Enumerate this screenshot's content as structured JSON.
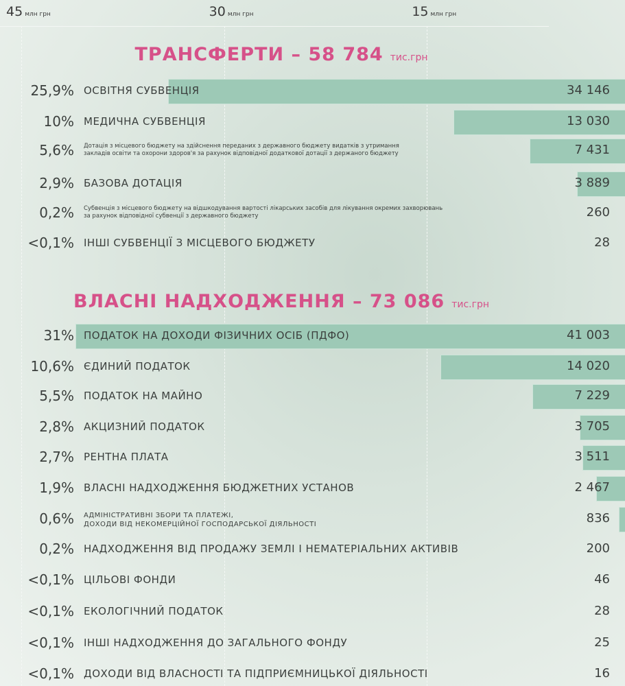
{
  "chart_data": {
    "type": "bar",
    "orientation": "horizontal",
    "xlim": [
      0,
      45
    ],
    "xticks": [
      45,
      30,
      15
    ],
    "x_unit": "млн грн",
    "color": "#9dc9b6",
    "sections": [
      {
        "title": "ТРАНСФЕРТИ – 58 784",
        "title_unit": "тис.грн",
        "categories": [
          "ОСВІТНЯ СУБВЕНЦІЯ",
          "МЕДИЧНА СУБВЕНЦІЯ",
          "Дотація з місцевого бюджету на здійснення переданих з державного бюджету видатків з утримання\nзакладів освіти та охорони здоров'я за рахунок відповідної додаткової дотації з держаного бюджету",
          "БАЗОВА ДОТАЦІЯ",
          "Субвенція з місцевого бюджету на відшкодування вартості лікарських засобів для лікування окремих захворювань\nза рахунок відповідної субвенції з державного бюджету",
          "ІНШІ СУБВЕНЦІЇ З МІСЦЕВОГО БЮДЖЕТУ"
        ],
        "shares": [
          "25,9%",
          "10%",
          "5,6%",
          "2,9%",
          "0,2%",
          "<0,1%"
        ],
        "values": [
          34.146,
          13.03,
          7.431,
          3.889,
          0.26,
          0.028
        ],
        "value_labels": [
          "34 146",
          "13 030",
          "7 431",
          "3 889",
          "260",
          "28"
        ]
      },
      {
        "title": "ВЛАСНІ НАДХОДЖЕННЯ – 73 086",
        "title_unit": "тис.грн",
        "categories": [
          "ПОДАТОК НА ДОХОДИ ФІЗИЧНИХ ОСІБ (ПДФО)",
          "ЄДИНИЙ ПОДАТОК",
          "ПОДАТОК НА МАЙНО",
          "АКЦИЗНИЙ ПОДАТОК",
          "РЕНТНА ПЛАТА",
          "ВЛАСНІ НАДХОДЖЕННЯ БЮДЖЕТНИХ УСТАНОВ",
          "АДМІНІСТРАТИВНІ ЗБОРИ ТА ПЛАТЕЖІ,\nДОХОДИ ВІД НЕКОМЕРЦІЙНОЇ ГОСПОДАРСЬКОЇ ДІЯЛЬНОСТІ",
          "НАДХОДЖЕННЯ ВІД ПРОДАЖУ ЗЕМЛІ І НЕМАТЕРІАЛЬНИХ АКТИВІВ",
          "ЦІЛЬОВІ ФОНДИ",
          "ЕКОЛОГІЧНИЙ ПОДАТОК",
          "ІНШІ  НАДХОДЖЕННЯ ДО ЗАГАЛЬНОГО ФОНДУ",
          "ДОХОДИ ВІД ВЛАСНОСТІ ТА ПІДПРИЄМНИЦЬКОЇ ДІЯЛЬНОСТІ"
        ],
        "shares": [
          "31%",
          "10,6%",
          "5,5%",
          "2,8%",
          "2,7%",
          "1,9%",
          "0,6%",
          "0,2%",
          "<0,1%",
          "<0,1%",
          "<0,1%",
          "<0,1%"
        ],
        "values": [
          41.003,
          14.02,
          7.229,
          3.705,
          3.511,
          2.467,
          0.836,
          0.2,
          0.046,
          0.028,
          0.025,
          0.016
        ],
        "value_labels": [
          "41 003",
          "14 020",
          "7 229",
          "3 705",
          "3 511",
          "2 467",
          "836",
          "200",
          "46",
          "28",
          "25",
          "16"
        ]
      }
    ]
  }
}
